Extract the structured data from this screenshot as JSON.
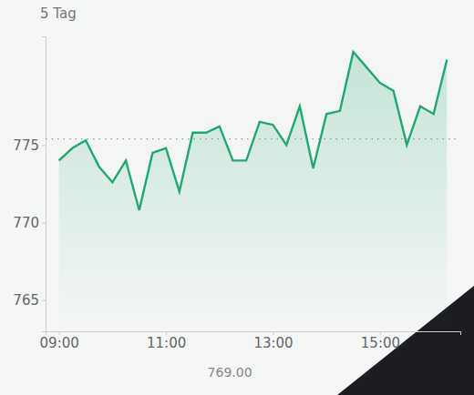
{
  "chart_data": {
    "type": "line",
    "title": "5 Tag",
    "x": [
      9.0,
      9.25,
      9.5,
      9.75,
      10.0,
      10.25,
      10.5,
      10.75,
      11.0,
      11.25,
      11.5,
      11.75,
      12.0,
      12.25,
      12.5,
      12.75,
      13.0,
      13.25,
      13.5,
      13.75,
      14.0,
      14.25,
      14.5,
      14.75,
      15.0,
      15.25,
      15.5,
      15.75,
      16.0,
      16.25
    ],
    "values": [
      774.0,
      774.8,
      775.3,
      773.6,
      772.6,
      774.0,
      770.8,
      774.5,
      774.8,
      772.0,
      775.8,
      775.8,
      776.2,
      774.0,
      774.0,
      776.5,
      776.3,
      775.0,
      777.5,
      773.5,
      777.0,
      777.2,
      781.0,
      780.0,
      779.0,
      778.5,
      775.0,
      777.5,
      777.0,
      780.5
    ],
    "color": "#1fa971",
    "previous_close": 775.4,
    "annotations": [
      "769.00"
    ],
    "xlim": [
      8.75,
      16.5
    ],
    "xticks": [
      {
        "value": 9,
        "label": "09:00"
      },
      {
        "value": 11,
        "label": "11:00"
      },
      {
        "value": 13,
        "label": "13:00"
      },
      {
        "value": 15,
        "label": "15:00"
      }
    ],
    "ylim": [
      763,
      782
    ],
    "yticks": [
      765,
      770,
      775
    ],
    "grid": false
  }
}
